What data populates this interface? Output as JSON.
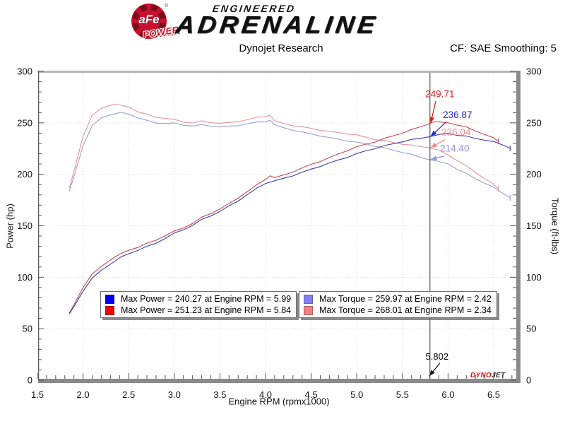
{
  "header": {
    "logo": {
      "afe": "aFe",
      "reg": "®",
      "power": "POWER",
      "tagline_top": "ENGINEERED",
      "tagline_main": "ADRENALINE"
    },
    "title": "Dynojet Research",
    "smoothing": "CF: SAE Smoothing: 5"
  },
  "watermark": {
    "dyno": "DYNO",
    "jet": "JET"
  },
  "legend": {
    "boxes": [
      {
        "rows": [
          {
            "swatch": "#0000f0",
            "text": "Max Power = 240.27 at Engine RPM = 5.99"
          },
          {
            "swatch": "#f00000",
            "text": "Max Power = 251.23 at Engine RPM = 5.84"
          }
        ]
      },
      {
        "rows": [
          {
            "swatch": "#8080f0",
            "text": "Max Torque = 259.97 at Engine RPM = 2.42"
          },
          {
            "swatch": "#f08080",
            "text": "Max Torque = 268.01 at Engine RPM = 2.34"
          }
        ]
      }
    ]
  },
  "chart_data": {
    "type": "line",
    "title": "Dynojet Research",
    "xlabel": "Engine RPM (rpmx1000)",
    "ylabel_left": "Power (hp)",
    "ylabel_right": "Torque (ft-lbs)",
    "xlim": [
      1.5,
      6.75
    ],
    "ylim": [
      0,
      300
    ],
    "x_major_ticks": [
      1.5,
      2.0,
      2.5,
      3.0,
      3.5,
      4.0,
      4.5,
      5.0,
      5.5,
      6.0,
      6.5
    ],
    "y_major_ticks": [
      0,
      50,
      100,
      150,
      200,
      250,
      300
    ],
    "x_minor_step": 0.1,
    "y_minor_step": 10,
    "grid": true,
    "legend_position": "bottom-center",
    "cursor": {
      "x": 5.802,
      "label": "5.802"
    },
    "annotations": [
      {
        "text": "249.71",
        "value": 249.71,
        "color": "#e02020"
      },
      {
        "text": "236.87",
        "value": 236.87,
        "color": "#2828cc"
      },
      {
        "text": "226.04",
        "value": 226.04,
        "color": "#ef8a8a"
      },
      {
        "text": "214.40",
        "value": 214.4,
        "color": "#9494e0"
      }
    ],
    "series": [
      {
        "name": "torque-afe",
        "label": "Max Torque = 268.01 at Engine RPM = 2.34",
        "color": "#e0949c",
        "points": [
          [
            1.85,
            187
          ],
          [
            1.9,
            203
          ],
          [
            2.0,
            237
          ],
          [
            2.1,
            257
          ],
          [
            2.2,
            264
          ],
          [
            2.3,
            267.5
          ],
          [
            2.34,
            268
          ],
          [
            2.4,
            267
          ],
          [
            2.5,
            265.5
          ],
          [
            2.6,
            261
          ],
          [
            2.7,
            258
          ],
          [
            2.8,
            255.5
          ],
          [
            2.9,
            254.5
          ],
          [
            3.0,
            253
          ],
          [
            3.1,
            251
          ],
          [
            3.2,
            250
          ],
          [
            3.3,
            251.5
          ],
          [
            3.4,
            250.5
          ],
          [
            3.5,
            249.5
          ],
          [
            3.6,
            250
          ],
          [
            3.7,
            251.5
          ],
          [
            3.8,
            253
          ],
          [
            3.9,
            255
          ],
          [
            4.0,
            256.5
          ],
          [
            4.05,
            257
          ],
          [
            4.1,
            252
          ],
          [
            4.2,
            249
          ],
          [
            4.3,
            247.5
          ],
          [
            4.4,
            246
          ],
          [
            4.5,
            244.5
          ],
          [
            4.6,
            243
          ],
          [
            4.7,
            241.5
          ],
          [
            4.8,
            240.5
          ],
          [
            4.9,
            239.5
          ],
          [
            5.0,
            238
          ],
          [
            5.1,
            236
          ],
          [
            5.2,
            234
          ],
          [
            5.3,
            232.5
          ],
          [
            5.4,
            231
          ],
          [
            5.5,
            229.5
          ],
          [
            5.6,
            228
          ],
          [
            5.7,
            227
          ],
          [
            5.8,
            226
          ],
          [
            5.9,
            223
          ],
          [
            6.0,
            219
          ],
          [
            6.1,
            213.5
          ],
          [
            6.2,
            208
          ],
          [
            6.3,
            202
          ],
          [
            6.4,
            196
          ],
          [
            6.5,
            190
          ],
          [
            6.55,
            186
          ]
        ]
      },
      {
        "name": "torque-stock",
        "label": "Max Torque = 259.97 at Engine RPM = 2.42",
        "color": "#989ed6",
        "points": [
          [
            1.85,
            184
          ],
          [
            1.9,
            198
          ],
          [
            2.0,
            228
          ],
          [
            2.1,
            247
          ],
          [
            2.2,
            255
          ],
          [
            2.3,
            258
          ],
          [
            2.42,
            260
          ],
          [
            2.5,
            258.5
          ],
          [
            2.6,
            255
          ],
          [
            2.7,
            252
          ],
          [
            2.8,
            250
          ],
          [
            2.9,
            249.5
          ],
          [
            3.0,
            249.5
          ],
          [
            3.1,
            248
          ],
          [
            3.2,
            247
          ],
          [
            3.3,
            248
          ],
          [
            3.4,
            247
          ],
          [
            3.5,
            246
          ],
          [
            3.6,
            246.5
          ],
          [
            3.7,
            247.5
          ],
          [
            3.8,
            249
          ],
          [
            3.9,
            250.5
          ],
          [
            4.0,
            251.5
          ],
          [
            4.05,
            252
          ],
          [
            4.1,
            248
          ],
          [
            4.2,
            245
          ],
          [
            4.3,
            243
          ],
          [
            4.4,
            241
          ],
          [
            4.5,
            239
          ],
          [
            4.6,
            237.5
          ],
          [
            4.7,
            235.5
          ],
          [
            4.8,
            234
          ],
          [
            4.9,
            232.5
          ],
          [
            5.0,
            231
          ],
          [
            5.1,
            229.5
          ],
          [
            5.2,
            227.5
          ],
          [
            5.3,
            225.5
          ],
          [
            5.4,
            223.5
          ],
          [
            5.5,
            221.5
          ],
          [
            5.6,
            219
          ],
          [
            5.7,
            216.5
          ],
          [
            5.8,
            214.4
          ],
          [
            5.9,
            212
          ],
          [
            6.0,
            210.3
          ],
          [
            6.1,
            205
          ],
          [
            6.2,
            200.5
          ],
          [
            6.3,
            196
          ],
          [
            6.4,
            191.5
          ],
          [
            6.5,
            187
          ],
          [
            6.6,
            182
          ],
          [
            6.68,
            177
          ]
        ]
      },
      {
        "name": "power-afe",
        "label": "Max Power = 251.23 at Engine RPM = 5.84",
        "color": "#c94753",
        "points": [
          [
            1.85,
            65.9
          ],
          [
            1.9,
            73.4
          ],
          [
            2.0,
            90.3
          ],
          [
            2.1,
            102.8
          ],
          [
            2.2,
            110.6
          ],
          [
            2.3,
            117.1
          ],
          [
            2.34,
            119.4
          ],
          [
            2.4,
            122.0
          ],
          [
            2.5,
            126.4
          ],
          [
            2.6,
            129.2
          ],
          [
            2.7,
            132.6
          ],
          [
            2.8,
            136.2
          ],
          [
            2.9,
            140.5
          ],
          [
            3.0,
            144.5
          ],
          [
            3.1,
            148.2
          ],
          [
            3.2,
            152.3
          ],
          [
            3.3,
            158.0
          ],
          [
            3.4,
            162.2
          ],
          [
            3.5,
            166.3
          ],
          [
            3.6,
            171.4
          ],
          [
            3.7,
            177.2
          ],
          [
            3.8,
            183.1
          ],
          [
            3.9,
            189.4
          ],
          [
            4.0,
            195.4
          ],
          [
            4.05,
            198.2
          ],
          [
            4.1,
            196.7
          ],
          [
            4.2,
            199.1
          ],
          [
            4.3,
            202.6
          ],
          [
            4.4,
            206.1
          ],
          [
            4.5,
            209.5
          ],
          [
            4.6,
            212.8
          ],
          [
            4.7,
            216.1
          ],
          [
            4.8,
            219.8
          ],
          [
            4.9,
            223.4
          ],
          [
            5.0,
            226.6
          ],
          [
            5.1,
            229.2
          ],
          [
            5.2,
            231.7
          ],
          [
            5.3,
            234.6
          ],
          [
            5.4,
            237.5
          ],
          [
            5.5,
            240.3
          ],
          [
            5.6,
            243.1
          ],
          [
            5.7,
            246.3
          ],
          [
            5.8,
            249.6
          ],
          [
            5.84,
            251.2
          ],
          [
            5.9,
            250.5
          ],
          [
            6.0,
            250.2
          ],
          [
            6.1,
            248.0
          ],
          [
            6.2,
            245.6
          ],
          [
            6.3,
            242.3
          ],
          [
            6.4,
            238.8
          ],
          [
            6.5,
            235.1
          ],
          [
            6.55,
            232.0
          ]
        ]
      },
      {
        "name": "power-stock",
        "label": "Max Power = 240.27 at Engine RPM = 5.99",
        "color": "#3c40b0",
        "points": [
          [
            1.85,
            64.8
          ],
          [
            1.9,
            71.6
          ],
          [
            2.0,
            86.8
          ],
          [
            2.1,
            98.8
          ],
          [
            2.2,
            106.8
          ],
          [
            2.3,
            113.0
          ],
          [
            2.42,
            119.8
          ],
          [
            2.5,
            123.0
          ],
          [
            2.6,
            126.2
          ],
          [
            2.7,
            129.6
          ],
          [
            2.8,
            133.3
          ],
          [
            2.9,
            137.8
          ],
          [
            3.0,
            142.5
          ],
          [
            3.1,
            146.4
          ],
          [
            3.2,
            150.5
          ],
          [
            3.3,
            155.8
          ],
          [
            3.4,
            159.9
          ],
          [
            3.5,
            163.9
          ],
          [
            3.6,
            169.0
          ],
          [
            3.7,
            174.4
          ],
          [
            3.8,
            180.2
          ],
          [
            3.9,
            186.0
          ],
          [
            4.0,
            191.5
          ],
          [
            4.1,
            193.6
          ],
          [
            4.2,
            195.9
          ],
          [
            4.3,
            198.9
          ],
          [
            4.4,
            201.9
          ],
          [
            4.5,
            204.8
          ],
          [
            4.6,
            208.0
          ],
          [
            4.7,
            210.8
          ],
          [
            4.8,
            213.9
          ],
          [
            4.9,
            216.9
          ],
          [
            5.0,
            219.9
          ],
          [
            5.1,
            222.8
          ],
          [
            5.2,
            225.2
          ],
          [
            5.3,
            227.5
          ],
          [
            5.4,
            229.8
          ],
          [
            5.5,
            231.9
          ],
          [
            5.6,
            233.5
          ],
          [
            5.7,
            235.0
          ],
          [
            5.8,
            236.9
          ],
          [
            5.9,
            238.2
          ],
          [
            5.99,
            240.3
          ],
          [
            6.1,
            238.1
          ],
          [
            6.2,
            236.7
          ],
          [
            6.3,
            235.1
          ],
          [
            6.4,
            233.3
          ],
          [
            6.5,
            231.4
          ],
          [
            6.6,
            228.7
          ],
          [
            6.68,
            225.1
          ]
        ]
      }
    ]
  }
}
